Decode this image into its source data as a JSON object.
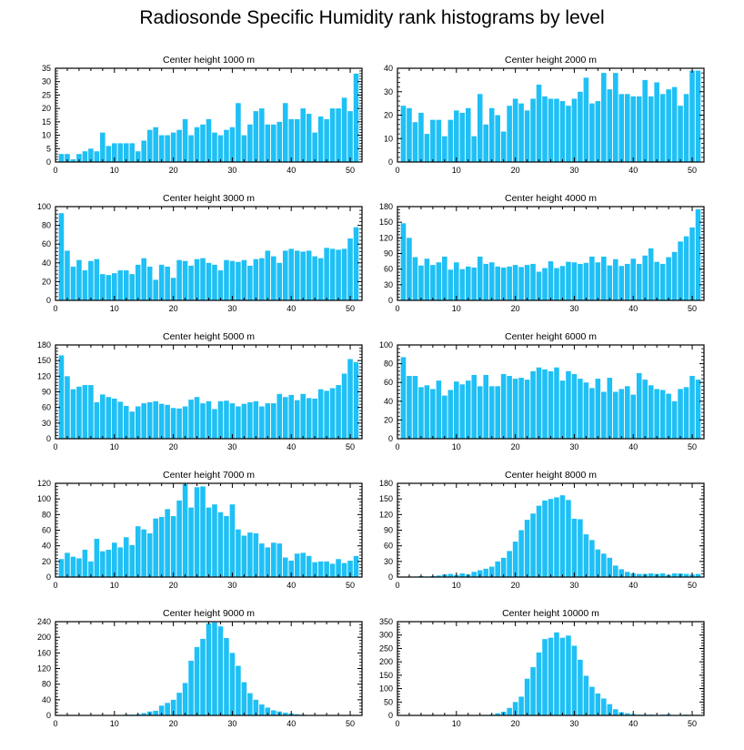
{
  "title": "Radiosonde Specific Humidity rank histograms by level",
  "bar_color": "#1ec0f5",
  "chart_data": [
    {
      "type": "bar",
      "title": "Center height 1000 m",
      "x": [
        1,
        2,
        3,
        4,
        5,
        6,
        7,
        8,
        9,
        10,
        11,
        12,
        13,
        14,
        15,
        16,
        17,
        18,
        19,
        20,
        21,
        22,
        23,
        24,
        25,
        26,
        27,
        28,
        29,
        30,
        31,
        32,
        33,
        34,
        35,
        36,
        37,
        38,
        39,
        40,
        41,
        42,
        43,
        44,
        45,
        46,
        47,
        48,
        49,
        50,
        51
      ],
      "values": [
        3,
        3,
        1,
        3,
        4,
        5,
        4,
        11,
        6,
        7,
        7,
        7,
        7,
        4,
        8,
        12,
        13,
        10,
        10,
        11,
        12,
        16,
        10,
        13,
        14,
        16,
        11,
        10,
        12,
        13,
        22,
        10,
        14,
        19,
        20,
        14,
        14,
        15,
        22,
        16,
        16,
        20,
        18,
        11,
        17,
        16,
        20,
        20,
        24,
        19,
        33
      ],
      "xlim": [
        0,
        52
      ],
      "ylim": [
        0,
        35
      ],
      "xticks": [
        0,
        10,
        20,
        30,
        40,
        50
      ],
      "yticks": [
        0,
        5,
        10,
        15,
        20,
        25,
        30,
        35
      ],
      "yaxis_side": "left"
    },
    {
      "type": "bar",
      "title": "Center height 2000 m",
      "x": [
        1,
        2,
        3,
        4,
        5,
        6,
        7,
        8,
        9,
        10,
        11,
        12,
        13,
        14,
        15,
        16,
        17,
        18,
        19,
        20,
        21,
        22,
        23,
        24,
        25,
        26,
        27,
        28,
        29,
        30,
        31,
        32,
        33,
        34,
        35,
        36,
        37,
        38,
        39,
        40,
        41,
        42,
        43,
        44,
        45,
        46,
        47,
        48,
        49,
        50,
        51
      ],
      "values": [
        24,
        23,
        17,
        21,
        12,
        18,
        18,
        11,
        18,
        22,
        21,
        23,
        11,
        29,
        16,
        23,
        20,
        13,
        24,
        27,
        25,
        22,
        27,
        33,
        28,
        27,
        27,
        26,
        24,
        27,
        30,
        36,
        25,
        26,
        38,
        31,
        38,
        29,
        29,
        28,
        28,
        35,
        28,
        34,
        29,
        31,
        32,
        24,
        29,
        39,
        39
      ],
      "xlim": [
        0,
        52
      ],
      "ylim": [
        0,
        40
      ],
      "xticks": [
        0,
        10,
        20,
        30,
        40,
        50
      ],
      "yticks": [
        0,
        10,
        20,
        30,
        40
      ],
      "yaxis_side": "right"
    },
    {
      "type": "bar",
      "title": "Center height 3000 m",
      "x": [
        1,
        2,
        3,
        4,
        5,
        6,
        7,
        8,
        9,
        10,
        11,
        12,
        13,
        14,
        15,
        16,
        17,
        18,
        19,
        20,
        21,
        22,
        23,
        24,
        25,
        26,
        27,
        28,
        29,
        30,
        31,
        32,
        33,
        34,
        35,
        36,
        37,
        38,
        39,
        40,
        41,
        42,
        43,
        44,
        45,
        46,
        47,
        48,
        49,
        50,
        51
      ],
      "values": [
        93,
        53,
        36,
        43,
        32,
        42,
        44,
        28,
        27,
        29,
        32,
        32,
        28,
        38,
        45,
        36,
        22,
        38,
        36,
        24,
        43,
        42,
        37,
        44,
        45,
        40,
        38,
        32,
        43,
        42,
        41,
        43,
        37,
        44,
        45,
        53,
        47,
        40,
        53,
        55,
        53,
        52,
        53,
        47,
        45,
        56,
        55,
        54,
        55,
        66,
        78
      ],
      "xlim": [
        0,
        52
      ],
      "ylim": [
        0,
        100
      ],
      "xticks": [
        0,
        10,
        20,
        30,
        40,
        50
      ],
      "yticks": [
        0,
        20,
        40,
        60,
        80,
        100
      ],
      "yaxis_side": "left"
    },
    {
      "type": "bar",
      "title": "Center height 4000 m",
      "x": [
        1,
        2,
        3,
        4,
        5,
        6,
        7,
        8,
        9,
        10,
        11,
        12,
        13,
        14,
        15,
        16,
        17,
        18,
        19,
        20,
        21,
        22,
        23,
        24,
        25,
        26,
        27,
        28,
        29,
        30,
        31,
        32,
        33,
        34,
        35,
        36,
        37,
        38,
        39,
        40,
        41,
        42,
        43,
        44,
        45,
        46,
        47,
        48,
        49,
        50,
        51
      ],
      "values": [
        148,
        120,
        83,
        67,
        80,
        68,
        73,
        84,
        59,
        73,
        60,
        65,
        63,
        84,
        70,
        73,
        65,
        63,
        65,
        68,
        64,
        68,
        70,
        55,
        62,
        75,
        62,
        66,
        74,
        73,
        70,
        72,
        84,
        73,
        84,
        67,
        79,
        66,
        70,
        80,
        70,
        86,
        100,
        74,
        70,
        83,
        93,
        113,
        123,
        140,
        175
      ],
      "xlim": [
        0,
        52
      ],
      "ylim": [
        0,
        180
      ],
      "xticks": [
        0,
        10,
        20,
        30,
        40,
        50
      ],
      "yticks": [
        0,
        30,
        60,
        90,
        120,
        150,
        180
      ],
      "yaxis_side": "right"
    },
    {
      "type": "bar",
      "title": "Center height 5000 m",
      "x": [
        1,
        2,
        3,
        4,
        5,
        6,
        7,
        8,
        9,
        10,
        11,
        12,
        13,
        14,
        15,
        16,
        17,
        18,
        19,
        20,
        21,
        22,
        23,
        24,
        25,
        26,
        27,
        28,
        29,
        30,
        31,
        32,
        33,
        34,
        35,
        36,
        37,
        38,
        39,
        40,
        41,
        42,
        43,
        44,
        45,
        46,
        47,
        48,
        49,
        50,
        51
      ],
      "values": [
        160,
        120,
        95,
        100,
        103,
        103,
        70,
        85,
        80,
        77,
        71,
        63,
        52,
        62,
        68,
        70,
        72,
        67,
        65,
        59,
        58,
        62,
        75,
        80,
        68,
        72,
        57,
        72,
        73,
        68,
        62,
        67,
        70,
        72,
        62,
        68,
        68,
        86,
        80,
        84,
        74,
        86,
        78,
        77,
        95,
        92,
        97,
        103,
        125,
        153,
        147
      ],
      "xlim": [
        0,
        52
      ],
      "ylim": [
        0,
        180
      ],
      "xticks": [
        0,
        10,
        20,
        30,
        40,
        50
      ],
      "yticks": [
        0,
        30,
        60,
        90,
        120,
        150,
        180
      ],
      "yaxis_side": "left"
    },
    {
      "type": "bar",
      "title": "Center height 6000 m",
      "x": [
        1,
        2,
        3,
        4,
        5,
        6,
        7,
        8,
        9,
        10,
        11,
        12,
        13,
        14,
        15,
        16,
        17,
        18,
        19,
        20,
        21,
        22,
        23,
        24,
        25,
        26,
        27,
        28,
        29,
        30,
        31,
        32,
        33,
        34,
        35,
        36,
        37,
        38,
        39,
        40,
        41,
        42,
        43,
        44,
        45,
        46,
        47,
        48,
        49,
        50,
        51
      ],
      "values": [
        87,
        67,
        67,
        55,
        57,
        53,
        62,
        46,
        52,
        61,
        58,
        62,
        68,
        56,
        68,
        56,
        56,
        69,
        67,
        64,
        65,
        63,
        72,
        76,
        74,
        72,
        76,
        62,
        72,
        69,
        64,
        60,
        54,
        64,
        50,
        65,
        50,
        53,
        56,
        47,
        70,
        63,
        57,
        53,
        52,
        48,
        40,
        53,
        55,
        67,
        63
      ],
      "xlim": [
        0,
        52
      ],
      "ylim": [
        0,
        100
      ],
      "xticks": [
        0,
        10,
        20,
        30,
        40,
        50
      ],
      "yticks": [
        0,
        20,
        40,
        60,
        80,
        100
      ],
      "yaxis_side": "right"
    },
    {
      "type": "bar",
      "title": "Center height 7000 m",
      "x": [
        1,
        2,
        3,
        4,
        5,
        6,
        7,
        8,
        9,
        10,
        11,
        12,
        13,
        14,
        15,
        16,
        17,
        18,
        19,
        20,
        21,
        22,
        23,
        24,
        25,
        26,
        27,
        28,
        29,
        30,
        31,
        32,
        33,
        34,
        35,
        36,
        37,
        38,
        39,
        40,
        41,
        42,
        43,
        44,
        45,
        46,
        47,
        48,
        49,
        50,
        51
      ],
      "values": [
        23,
        31,
        26,
        24,
        35,
        20,
        49,
        33,
        35,
        44,
        38,
        51,
        41,
        65,
        61,
        56,
        75,
        77,
        87,
        78,
        98,
        119,
        89,
        115,
        116,
        89,
        93,
        83,
        78,
        93,
        61,
        53,
        57,
        56,
        43,
        38,
        44,
        43,
        25,
        21,
        30,
        31,
        27,
        19,
        20,
        20,
        17,
        23,
        18,
        21,
        27
      ],
      "xlim": [
        0,
        52
      ],
      "ylim": [
        0,
        120
      ],
      "xticks": [
        0,
        10,
        20,
        30,
        40,
        50
      ],
      "yticks": [
        0,
        20,
        40,
        60,
        80,
        100,
        120
      ],
      "yaxis_side": "left"
    },
    {
      "type": "bar",
      "title": "Center height 8000 m",
      "x": [
        1,
        2,
        3,
        4,
        5,
        6,
        7,
        8,
        9,
        10,
        11,
        12,
        13,
        14,
        15,
        16,
        17,
        18,
        19,
        20,
        21,
        22,
        23,
        24,
        25,
        26,
        27,
        28,
        29,
        30,
        31,
        32,
        33,
        34,
        35,
        36,
        37,
        38,
        39,
        40,
        41,
        42,
        43,
        44,
        45,
        46,
        47,
        48,
        49,
        50,
        51
      ],
      "values": [
        1,
        1,
        1,
        2,
        1,
        2,
        3,
        5,
        6,
        4,
        7,
        5,
        10,
        13,
        16,
        20,
        30,
        37,
        50,
        68,
        90,
        110,
        122,
        137,
        147,
        150,
        153,
        157,
        148,
        112,
        111,
        82,
        71,
        53,
        45,
        37,
        22,
        15,
        10,
        7,
        6,
        6,
        7,
        6,
        7,
        4,
        7,
        7,
        6,
        5,
        6
      ],
      "xlim": [
        0,
        52
      ],
      "ylim": [
        0,
        180
      ],
      "xticks": [
        0,
        10,
        20,
        30,
        40,
        50
      ],
      "yticks": [
        0,
        30,
        60,
        90,
        120,
        150,
        180
      ],
      "yaxis_side": "right"
    },
    {
      "type": "bar",
      "title": "Center height 9000 m",
      "x": [
        1,
        2,
        3,
        4,
        5,
        6,
        7,
        8,
        9,
        10,
        11,
        12,
        13,
        14,
        15,
        16,
        17,
        18,
        19,
        20,
        21,
        22,
        23,
        24,
        25,
        26,
        27,
        28,
        29,
        30,
        31,
        32,
        33,
        34,
        35,
        36,
        37,
        38,
        39,
        40,
        41,
        42,
        43,
        44,
        45,
        46,
        47,
        48,
        49,
        50,
        51
      ],
      "values": [
        0,
        0,
        0,
        0,
        0,
        0,
        0,
        0,
        0,
        0,
        1,
        2,
        2,
        3,
        6,
        10,
        12,
        25,
        32,
        40,
        58,
        83,
        140,
        175,
        196,
        236,
        238,
        228,
        198,
        160,
        127,
        85,
        57,
        40,
        28,
        20,
        13,
        10,
        7,
        5,
        3,
        2,
        1,
        1,
        1,
        1,
        1,
        0,
        0,
        0,
        0
      ],
      "xlim": [
        0,
        52
      ],
      "ylim": [
        0,
        240
      ],
      "xticks": [
        0,
        10,
        20,
        30,
        40,
        50
      ],
      "yticks": [
        0,
        40,
        80,
        120,
        160,
        200,
        240
      ],
      "yaxis_side": "left"
    },
    {
      "type": "bar",
      "title": "Center height 10000 m",
      "x": [
        1,
        2,
        3,
        4,
        5,
        6,
        7,
        8,
        9,
        10,
        11,
        12,
        13,
        14,
        15,
        16,
        17,
        18,
        19,
        20,
        21,
        22,
        23,
        24,
        25,
        26,
        27,
        28,
        29,
        30,
        31,
        32,
        33,
        34,
        35,
        36,
        37,
        38,
        39,
        40,
        41,
        42,
        43,
        44,
        45,
        46,
        47,
        48,
        49,
        50,
        51
      ],
      "values": [
        0,
        0,
        0,
        0,
        0,
        0,
        0,
        0,
        0,
        0,
        1,
        0,
        1,
        1,
        2,
        3,
        8,
        14,
        28,
        50,
        70,
        137,
        180,
        235,
        285,
        290,
        310,
        290,
        298,
        260,
        208,
        148,
        107,
        82,
        63,
        42,
        23,
        12,
        8,
        5,
        3,
        3,
        3,
        2,
        3,
        4,
        2,
        2,
        3,
        2,
        2
      ],
      "xlim": [
        0,
        52
      ],
      "ylim": [
        0,
        350
      ],
      "xticks": [
        0,
        10,
        20,
        30,
        40,
        50
      ],
      "yticks": [
        0,
        50,
        100,
        150,
        200,
        250,
        300,
        350
      ],
      "yaxis_side": "right"
    }
  ]
}
